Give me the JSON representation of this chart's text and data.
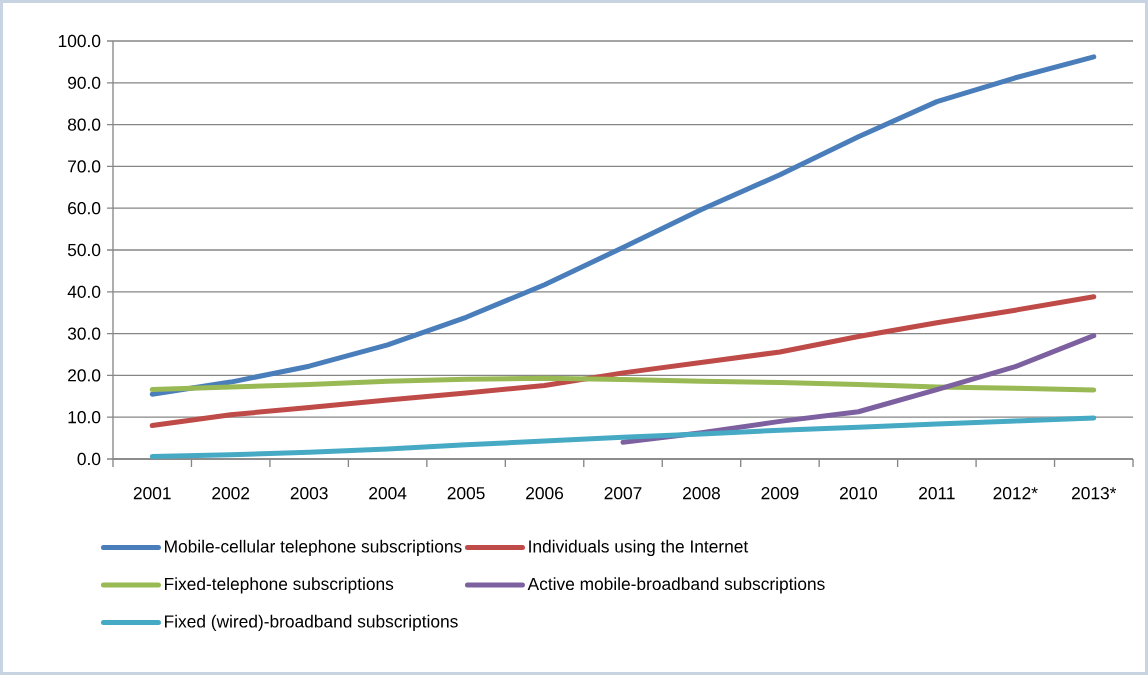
{
  "chart_data": {
    "type": "line",
    "categories": [
      "2001",
      "2002",
      "2003",
      "2004",
      "2005",
      "2006",
      "2007",
      "2008",
      "2009",
      "2010",
      "2011",
      "2012*",
      "2013*"
    ],
    "series": [
      {
        "name": "Mobile-cellular telephone subscriptions",
        "color": "#4a7ebb",
        "values": [
          15.5,
          18.4,
          22.2,
          27.3,
          33.9,
          41.7,
          50.6,
          59.7,
          68.0,
          77.1,
          85.5,
          91.2,
          96.2
        ]
      },
      {
        "name": "Individuals using the Internet",
        "color": "#be4b48",
        "values": [
          8.0,
          10.6,
          12.3,
          14.1,
          15.8,
          17.6,
          20.6,
          23.1,
          25.6,
          29.3,
          32.6,
          35.6,
          38.8
        ]
      },
      {
        "name": "Fixed-telephone subscriptions",
        "color": "#98b954",
        "values": [
          16.6,
          17.2,
          17.8,
          18.6,
          19.1,
          19.3,
          19.0,
          18.6,
          18.3,
          17.8,
          17.2,
          16.9,
          16.5
        ]
      },
      {
        "name": "Active mobile-broadband subscriptions",
        "color": "#7d60a0",
        "values": [
          null,
          null,
          null,
          null,
          null,
          null,
          4.0,
          6.3,
          9.0,
          11.3,
          16.6,
          22.1,
          29.5
        ]
      },
      {
        "name": "Fixed (wired)-broadband subscriptions",
        "color": "#46aac5",
        "values": [
          0.6,
          1.0,
          1.6,
          2.4,
          3.4,
          4.3,
          5.2,
          6.0,
          6.9,
          7.6,
          8.4,
          9.1,
          9.8
        ]
      }
    ],
    "ylim": [
      0,
      100
    ],
    "yticks": [
      {
        "value": 0,
        "label": "0.0"
      },
      {
        "value": 10,
        "label": "10.0"
      },
      {
        "value": 20,
        "label": "20.0"
      },
      {
        "value": 30,
        "label": "30.0"
      },
      {
        "value": 40,
        "label": "40.0"
      },
      {
        "value": 50,
        "label": "50.0"
      },
      {
        "value": 60,
        "label": "60.0"
      },
      {
        "value": 70,
        "label": "70.0"
      },
      {
        "value": 80,
        "label": "80.0"
      },
      {
        "value": 90,
        "label": "90.0"
      },
      {
        "value": 100,
        "label": "100.0"
      }
    ],
    "grid": "y",
    "legend": "bottom"
  }
}
